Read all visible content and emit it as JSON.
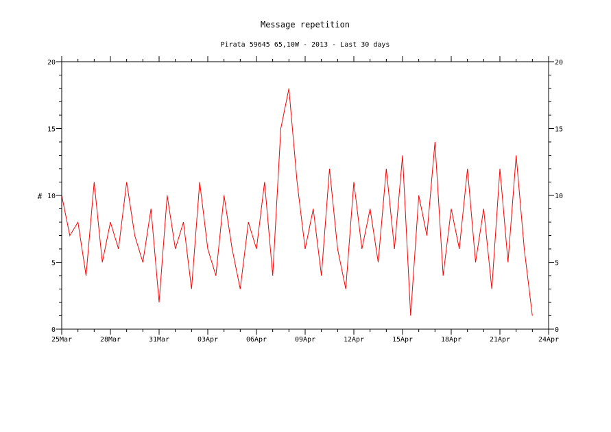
{
  "chart_data": {
    "type": "line",
    "title": "Message repetition",
    "subtitle": "Pirata 59645 65,10W - 2013 - Last 30 days",
    "ylabel": "#",
    "xlabel": "",
    "ylim": [
      0,
      20
    ],
    "y_ticks": [
      "0",
      "5",
      "10",
      "15",
      "20"
    ],
    "y_tick_values": [
      0,
      5,
      10,
      15,
      20
    ],
    "xlim": [
      "2013-03-25",
      "2013-04-24"
    ],
    "x_ticks": [
      "25Mar",
      "28Mar",
      "31Mar",
      "03Apr",
      "06Apr",
      "09Apr",
      "12Apr",
      "15Apr",
      "18Apr",
      "21Apr",
      "24Apr"
    ],
    "x_tick_dates": [
      "2013-03-25",
      "2013-03-28",
      "2013-03-31",
      "2013-04-03",
      "2013-04-06",
      "2013-04-09",
      "2013-04-12",
      "2013-04-15",
      "2013-04-18",
      "2013-04-21",
      "2013-04-24"
    ],
    "grid": false,
    "series": [
      {
        "color": "#ff0000",
        "x": [
          "2013-03-25 00:00",
          "2013-03-25 12:00",
          "2013-03-26 00:00",
          "2013-03-26 12:00",
          "2013-03-27 00:00",
          "2013-03-27 12:00",
          "2013-03-28 00:00",
          "2013-03-28 12:00",
          "2013-03-29 00:00",
          "2013-03-29 12:00",
          "2013-03-30 00:00",
          "2013-03-30 12:00",
          "2013-03-31 00:00",
          "2013-03-31 12:00",
          "2013-04-01 00:00",
          "2013-04-01 12:00",
          "2013-04-02 00:00",
          "2013-04-02 12:00",
          "2013-04-03 00:00",
          "2013-04-03 12:00",
          "2013-04-04 00:00",
          "2013-04-04 12:00",
          "2013-04-05 00:00",
          "2013-04-05 12:00",
          "2013-04-06 00:00",
          "2013-04-06 12:00",
          "2013-04-07 00:00",
          "2013-04-07 12:00",
          "2013-04-08 00:00",
          "2013-04-08 12:00",
          "2013-04-09 00:00",
          "2013-04-09 12:00",
          "2013-04-10 00:00",
          "2013-04-10 12:00",
          "2013-04-11 00:00",
          "2013-04-11 12:00",
          "2013-04-12 00:00",
          "2013-04-12 12:00",
          "2013-04-13 00:00",
          "2013-04-13 12:00",
          "2013-04-14 00:00",
          "2013-04-14 12:00",
          "2013-04-15 00:00",
          "2013-04-15 12:00",
          "2013-04-16 00:00",
          "2013-04-16 12:00",
          "2013-04-17 00:00",
          "2013-04-17 12:00",
          "2013-04-18 00:00",
          "2013-04-18 12:00",
          "2013-04-19 00:00",
          "2013-04-19 12:00",
          "2013-04-20 00:00",
          "2013-04-20 12:00",
          "2013-04-21 00:00",
          "2013-04-21 12:00",
          "2013-04-22 00:00",
          "2013-04-22 12:00",
          "2013-04-23 00:00"
        ],
        "y": [
          10,
          7,
          8,
          4,
          11,
          5,
          8,
          6,
          11,
          7,
          5,
          9,
          2,
          10,
          6,
          8,
          3,
          11,
          6,
          4,
          10,
          6,
          3,
          8,
          6,
          11,
          4,
          15,
          18,
          11,
          6,
          9,
          4,
          12,
          6,
          3,
          11,
          6,
          9,
          5,
          12,
          6,
          13,
          1,
          10,
          7,
          14,
          4,
          9,
          6,
          12,
          5,
          9,
          3,
          12,
          5,
          13,
          6,
          1
        ]
      }
    ]
  }
}
